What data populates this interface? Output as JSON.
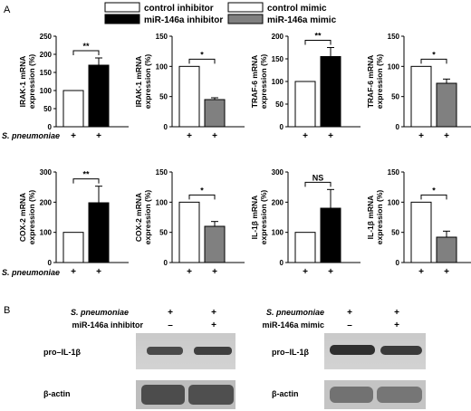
{
  "panel_a_label": "A",
  "panel_b_label": "B",
  "legend": [
    {
      "label": "control inhibitor",
      "color": "#ffffff"
    },
    {
      "label": "control mimic",
      "color": "#ffffff"
    },
    {
      "label": "miR-146a inhibitor",
      "color": "#000000"
    },
    {
      "label": "miR-146a mimic",
      "color": "#808080"
    }
  ],
  "x_row_label": "S. pneumoniae",
  "x_tick_label": "+",
  "chart_data": [
    {
      "type": "bar",
      "ylabel_lines": [
        "IRAK-1 mRNA",
        "expression (%)"
      ],
      "ylim": [
        0,
        250
      ],
      "yticks": [
        0,
        50,
        100,
        150,
        200,
        250
      ],
      "categories": [
        "+",
        "+"
      ],
      "values": [
        100,
        170
      ],
      "errors": [
        0,
        20
      ],
      "colors": [
        "#ffffff",
        "#000000"
      ],
      "significance": "**"
    },
    {
      "type": "bar",
      "ylabel_lines": [
        "IRAK-1 mRNA",
        "expression (%)"
      ],
      "ylim": [
        0,
        150
      ],
      "yticks": [
        0,
        50,
        100,
        150
      ],
      "categories": [
        "+",
        "+"
      ],
      "values": [
        100,
        45
      ],
      "errors": [
        0,
        3
      ],
      "colors": [
        "#ffffff",
        "#808080"
      ],
      "significance": "*"
    },
    {
      "type": "bar",
      "ylabel_lines": [
        "TRAF-6 mRNA",
        "expression (%)"
      ],
      "ylim": [
        0,
        200
      ],
      "yticks": [
        0,
        50,
        100,
        150,
        200
      ],
      "categories": [
        "+",
        "+"
      ],
      "values": [
        100,
        155
      ],
      "errors": [
        0,
        20
      ],
      "colors": [
        "#ffffff",
        "#000000"
      ],
      "significance": "**"
    },
    {
      "type": "bar",
      "ylabel_lines": [
        "TRAF-6 mRNA",
        "expression (%)"
      ],
      "ylim": [
        0,
        150
      ],
      "yticks": [
        0,
        50,
        100,
        150
      ],
      "categories": [
        "+",
        "+"
      ],
      "values": [
        100,
        72
      ],
      "errors": [
        0,
        7
      ],
      "colors": [
        "#ffffff",
        "#808080"
      ],
      "significance": "*"
    },
    {
      "type": "bar",
      "ylabel_lines": [
        "COX-2 mRNA",
        "expression (%)"
      ],
      "ylim": [
        0,
        300
      ],
      "yticks": [
        0,
        100,
        200,
        300
      ],
      "categories": [
        "+",
        "+"
      ],
      "values": [
        100,
        198
      ],
      "errors": [
        0,
        55
      ],
      "colors": [
        "#ffffff",
        "#000000"
      ],
      "significance": "**"
    },
    {
      "type": "bar",
      "ylabel_lines": [
        "COX-2 mRNA",
        "expression (%)"
      ],
      "ylim": [
        0,
        150
      ],
      "yticks": [
        0,
        50,
        100,
        150
      ],
      "categories": [
        "+",
        "+"
      ],
      "values": [
        100,
        60
      ],
      "errors": [
        0,
        8
      ],
      "colors": [
        "#ffffff",
        "#808080"
      ],
      "significance": "*"
    },
    {
      "type": "bar",
      "ylabel_lines": [
        "IL-1β mRNA",
        "expression (%)"
      ],
      "ylim": [
        0,
        300
      ],
      "yticks": [
        0,
        100,
        200,
        300
      ],
      "categories": [
        "+",
        "+"
      ],
      "values": [
        100,
        180
      ],
      "errors": [
        0,
        62
      ],
      "colors": [
        "#ffffff",
        "#000000"
      ],
      "significance": "NS"
    },
    {
      "type": "bar",
      "ylabel_lines": [
        "IL-1β mRNA",
        "expression (%)"
      ],
      "ylim": [
        0,
        150
      ],
      "yticks": [
        0,
        50,
        100,
        150
      ],
      "categories": [
        "+",
        "+"
      ],
      "values": [
        100,
        42
      ],
      "errors": [
        0,
        10
      ],
      "colors": [
        "#ffffff",
        "#808080"
      ],
      "significance": "*"
    }
  ],
  "blots": [
    {
      "condition_labels": [
        "S. pneumoniae",
        "miR-146a inhibitor"
      ],
      "lane_marks": [
        [
          "+",
          "+"
        ],
        [
          "–",
          "+"
        ]
      ],
      "bands": [
        "pro–IL-1β",
        "β-actin"
      ]
    },
    {
      "condition_labels": [
        "S. pneumoniae",
        "miR-146a mimic"
      ],
      "lane_marks": [
        [
          "+",
          "+"
        ],
        [
          "–",
          "+"
        ]
      ],
      "bands": [
        "pro–IL-1β",
        "β-actin"
      ]
    }
  ]
}
